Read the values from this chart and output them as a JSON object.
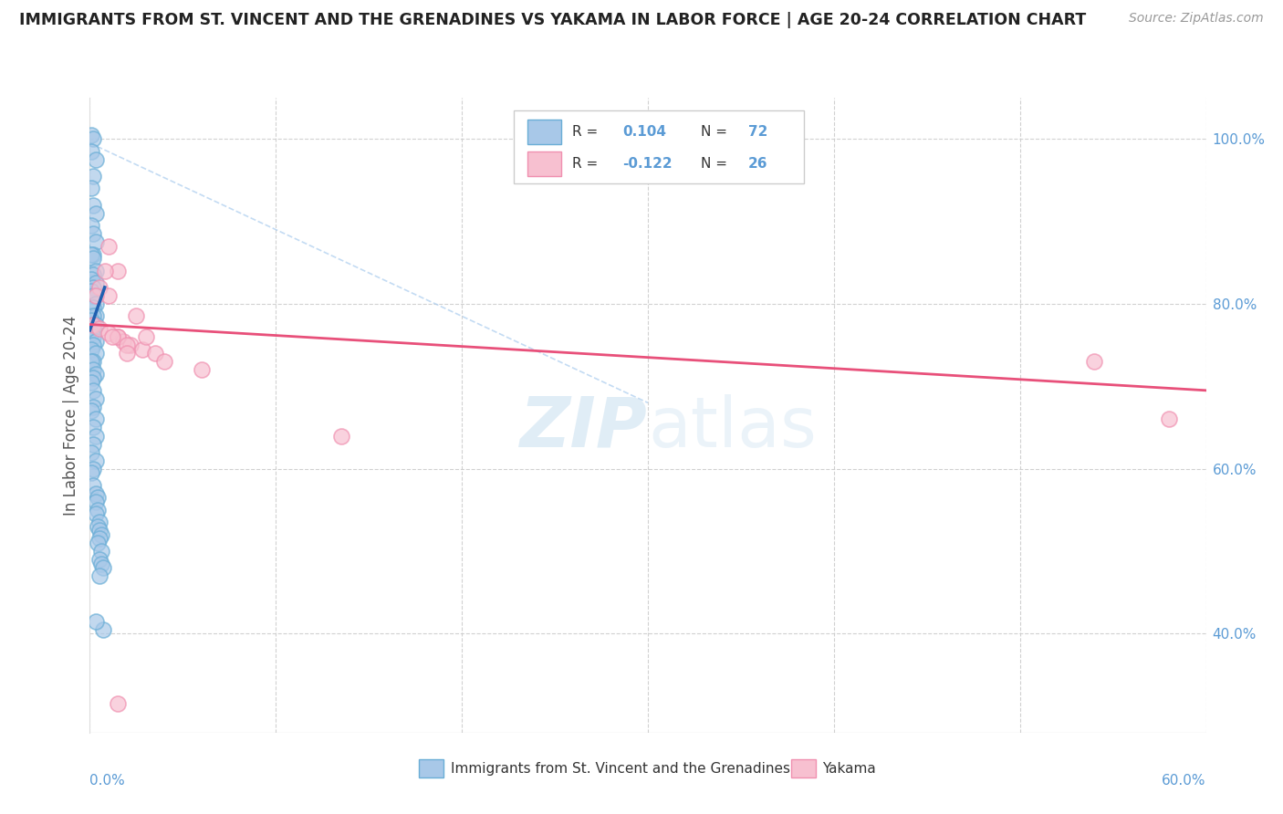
{
  "title": "IMMIGRANTS FROM ST. VINCENT AND THE GRENADINES VS YAKAMA IN LABOR FORCE | AGE 20-24 CORRELATION CHART",
  "source": "Source: ZipAtlas.com",
  "ylabel": "In Labor Force | Age 20-24",
  "xlim": [
    0.0,
    0.6
  ],
  "ylim": [
    0.28,
    1.05
  ],
  "blue_R": 0.104,
  "blue_N": 72,
  "pink_R": -0.122,
  "pink_N": 26,
  "blue_color": "#a8c8e8",
  "blue_edge_color": "#6aaed6",
  "pink_color": "#f7c0d0",
  "pink_edge_color": "#f090b0",
  "blue_line_color": "#2060b0",
  "pink_line_color": "#e8507a",
  "ref_line_color": "#aaccee",
  "tick_color": "#5b9bd5",
  "grid_color": "#cccccc",
  "background_color": "#ffffff",
  "watermark_color": "#c8dff0",
  "right_yticks": [
    1.0,
    0.8,
    0.6,
    0.4
  ],
  "right_yticklabels": [
    "100.0%",
    "80.0%",
    "60.0%",
    "40.0%"
  ],
  "blue_scatter_x": [
    0.001,
    0.002,
    0.001,
    0.003,
    0.002,
    0.001,
    0.002,
    0.003,
    0.001,
    0.002,
    0.003,
    0.002,
    0.001,
    0.002,
    0.003,
    0.002,
    0.001,
    0.003,
    0.002,
    0.001,
    0.002,
    0.003,
    0.002,
    0.003,
    0.002,
    0.001,
    0.002,
    0.003,
    0.002,
    0.001,
    0.002,
    0.003,
    0.002,
    0.001,
    0.003,
    0.002,
    0.001,
    0.002,
    0.003,
    0.002,
    0.001,
    0.002,
    0.003,
    0.002,
    0.001,
    0.003,
    0.002,
    0.003,
    0.002,
    0.001,
    0.003,
    0.002,
    0.001,
    0.002,
    0.003,
    0.004,
    0.003,
    0.004,
    0.003,
    0.005,
    0.004,
    0.005,
    0.006,
    0.005,
    0.004,
    0.006,
    0.005,
    0.006,
    0.007,
    0.005,
    0.007,
    0.003
  ],
  "blue_scatter_y": [
    1.005,
    1.0,
    0.985,
    0.975,
    0.955,
    0.94,
    0.92,
    0.91,
    0.895,
    0.885,
    0.875,
    0.86,
    0.86,
    0.855,
    0.84,
    0.835,
    0.83,
    0.825,
    0.82,
    0.815,
    0.81,
    0.8,
    0.795,
    0.785,
    0.785,
    0.78,
    0.775,
    0.775,
    0.77,
    0.765,
    0.76,
    0.755,
    0.75,
    0.745,
    0.74,
    0.73,
    0.73,
    0.72,
    0.715,
    0.71,
    0.705,
    0.695,
    0.685,
    0.675,
    0.67,
    0.66,
    0.65,
    0.64,
    0.63,
    0.62,
    0.61,
    0.6,
    0.595,
    0.58,
    0.57,
    0.565,
    0.56,
    0.55,
    0.545,
    0.535,
    0.53,
    0.525,
    0.52,
    0.515,
    0.51,
    0.5,
    0.49,
    0.485,
    0.48,
    0.47,
    0.405,
    0.415
  ],
  "pink_scatter_x": [
    0.002,
    0.005,
    0.01,
    0.015,
    0.018,
    0.022,
    0.028,
    0.035,
    0.005,
    0.01,
    0.015,
    0.02,
    0.025,
    0.03,
    0.01,
    0.015,
    0.003,
    0.008,
    0.012,
    0.02,
    0.04,
    0.06,
    0.54,
    0.58,
    0.135,
    0.015
  ],
  "pink_scatter_y": [
    0.775,
    0.77,
    0.765,
    0.76,
    0.755,
    0.75,
    0.745,
    0.74,
    0.82,
    0.81,
    0.76,
    0.75,
    0.785,
    0.76,
    0.87,
    0.84,
    0.81,
    0.84,
    0.76,
    0.74,
    0.73,
    0.72,
    0.73,
    0.66,
    0.64,
    0.315
  ]
}
